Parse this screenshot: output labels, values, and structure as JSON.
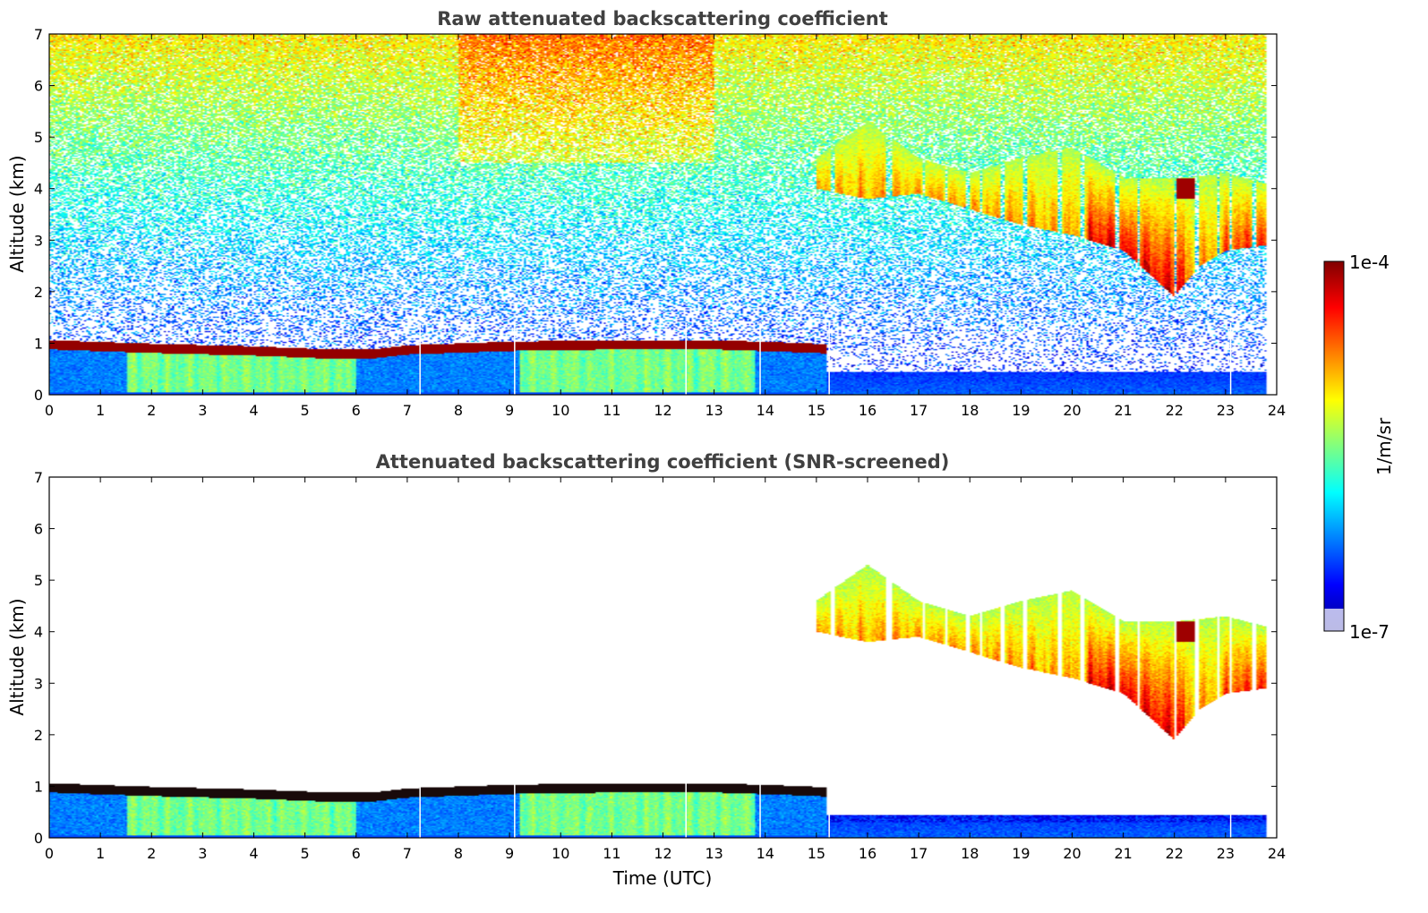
{
  "colors": {
    "jet": [
      "#00008f",
      "#0000ff",
      "#0080ff",
      "#00ffff",
      "#80ff80",
      "#ffff00",
      "#ff8000",
      "#ff0000",
      "#800000"
    ],
    "background": "#ffffff"
  },
  "chart_data": [
    {
      "type": "heatmap",
      "title": "Raw attenuated backscattering coefficient",
      "xlabel": "",
      "ylabel": "Altitude (km)",
      "xlim": [
        0,
        24
      ],
      "ylim": [
        0,
        7
      ],
      "xticks": [
        "0",
        "1",
        "2",
        "3",
        "4",
        "5",
        "6",
        "7",
        "8",
        "9",
        "10",
        "11",
        "12",
        "13",
        "14",
        "15",
        "16",
        "17",
        "18",
        "19",
        "20",
        "21",
        "22",
        "23",
        "24"
      ],
      "yticks": [
        "0",
        "1",
        "2",
        "3",
        "4",
        "5",
        "6",
        "7"
      ],
      "features": {
        "boundary_layer_top_km": [
          [
            0,
            1.0
          ],
          [
            2,
            0.93
          ],
          [
            4,
            0.88
          ],
          [
            5.5,
            0.82
          ],
          [
            6.3,
            0.82
          ],
          [
            7,
            0.9
          ],
          [
            9,
            0.97
          ],
          [
            11,
            1.0
          ],
          [
            13,
            1.0
          ],
          [
            14.5,
            0.95
          ],
          [
            15.2,
            0.92
          ]
        ],
        "boundary_layer_end_utc": 15.2,
        "cloud_base_km": [
          [
            15,
            4.0
          ],
          [
            16,
            3.8
          ],
          [
            17,
            3.9
          ],
          [
            18,
            3.6
          ],
          [
            19,
            3.3
          ],
          [
            20,
            3.1
          ],
          [
            21,
            2.8
          ],
          [
            22,
            1.9
          ],
          [
            22.5,
            2.5
          ],
          [
            23,
            2.8
          ],
          [
            23.8,
            2.9
          ]
        ],
        "cloud_top_km": [
          [
            15,
            4.6
          ],
          [
            16,
            5.3
          ],
          [
            17,
            4.6
          ],
          [
            18,
            4.3
          ],
          [
            19,
            4.6
          ],
          [
            20,
            4.8
          ],
          [
            21,
            4.2
          ],
          [
            22,
            4.2
          ],
          [
            23,
            4.3
          ],
          [
            23.8,
            4.1
          ]
        ],
        "data_end_utc": 23.8,
        "gap_times_utc": [
          7.25,
          9.1,
          12.45,
          13.9,
          15.25,
          23.1
        ]
      }
    },
    {
      "type": "heatmap",
      "title": "Attenuated backscattering coefficient (SNR-screened)",
      "xlabel": "Time (UTC)",
      "ylabel": "Altitude (km)",
      "xlim": [
        0,
        24
      ],
      "ylim": [
        0,
        7
      ],
      "xticks": [
        "0",
        "1",
        "2",
        "3",
        "4",
        "5",
        "6",
        "7",
        "8",
        "9",
        "10",
        "11",
        "12",
        "13",
        "14",
        "15",
        "16",
        "17",
        "18",
        "19",
        "20",
        "21",
        "22",
        "23",
        "24"
      ],
      "yticks": [
        "0",
        "1",
        "2",
        "3",
        "4",
        "5",
        "6",
        "7"
      ]
    }
  ],
  "colorbar": {
    "max_label": "1e-4",
    "min_label": "1e-7",
    "unit_label": "1/m/sr",
    "scale": "log"
  }
}
